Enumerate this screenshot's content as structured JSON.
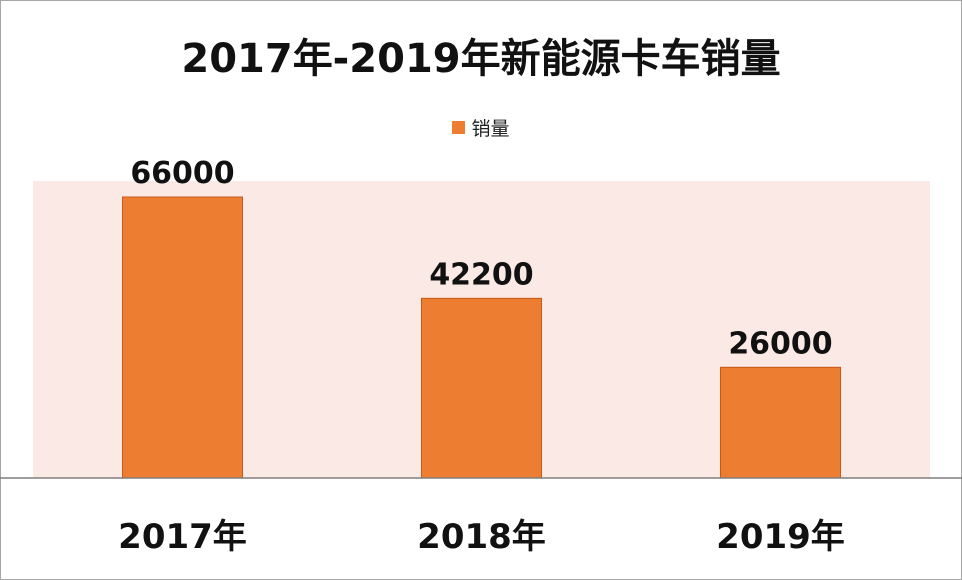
{
  "chart_data": {
    "type": "bar",
    "title": "2017年-2019年新能源卡车销量",
    "categories": [
      "2017年",
      "2018年",
      "2019年"
    ],
    "series": [
      {
        "name": "销量",
        "values": [
          66000,
          42200,
          26000
        ]
      }
    ],
    "data_labels": [
      "66000",
      "42200",
      "26000"
    ],
    "ylim": [
      0,
      70000
    ],
    "xlabel": "",
    "ylabel": "",
    "grid": false,
    "legend_position": "top",
    "bar_color": "#ED7D31",
    "plot_background": "#FBE9E5",
    "axis_color": "#7F7F7F"
  }
}
